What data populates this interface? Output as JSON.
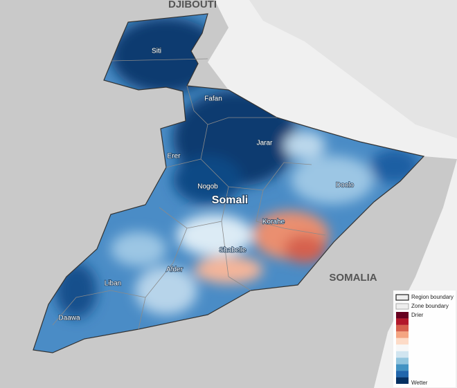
{
  "map": {
    "countries": [
      "DJIBOUTI",
      "SOMALIA"
    ],
    "region": "Somali",
    "zones": [
      "Siti",
      "Fafan",
      "Erer",
      "Jarar",
      "Nogob",
      "Doolo",
      "Korahe",
      "Shabelle",
      "Afder",
      "Liban",
      "Daawa"
    ],
    "legend": {
      "items": [
        "Region boundary",
        "Zone boundary"
      ],
      "scale_top": "Drier",
      "scale_bottom": "Wetter",
      "scale_colors": [
        "#67001f",
        "#b2182b",
        "#d6604d",
        "#f4a582",
        "#fddbc7",
        "#f7f7f7",
        "#d1e5f0",
        "#92c5de",
        "#4393c3",
        "#2166ac",
        "#053061"
      ]
    }
  }
}
